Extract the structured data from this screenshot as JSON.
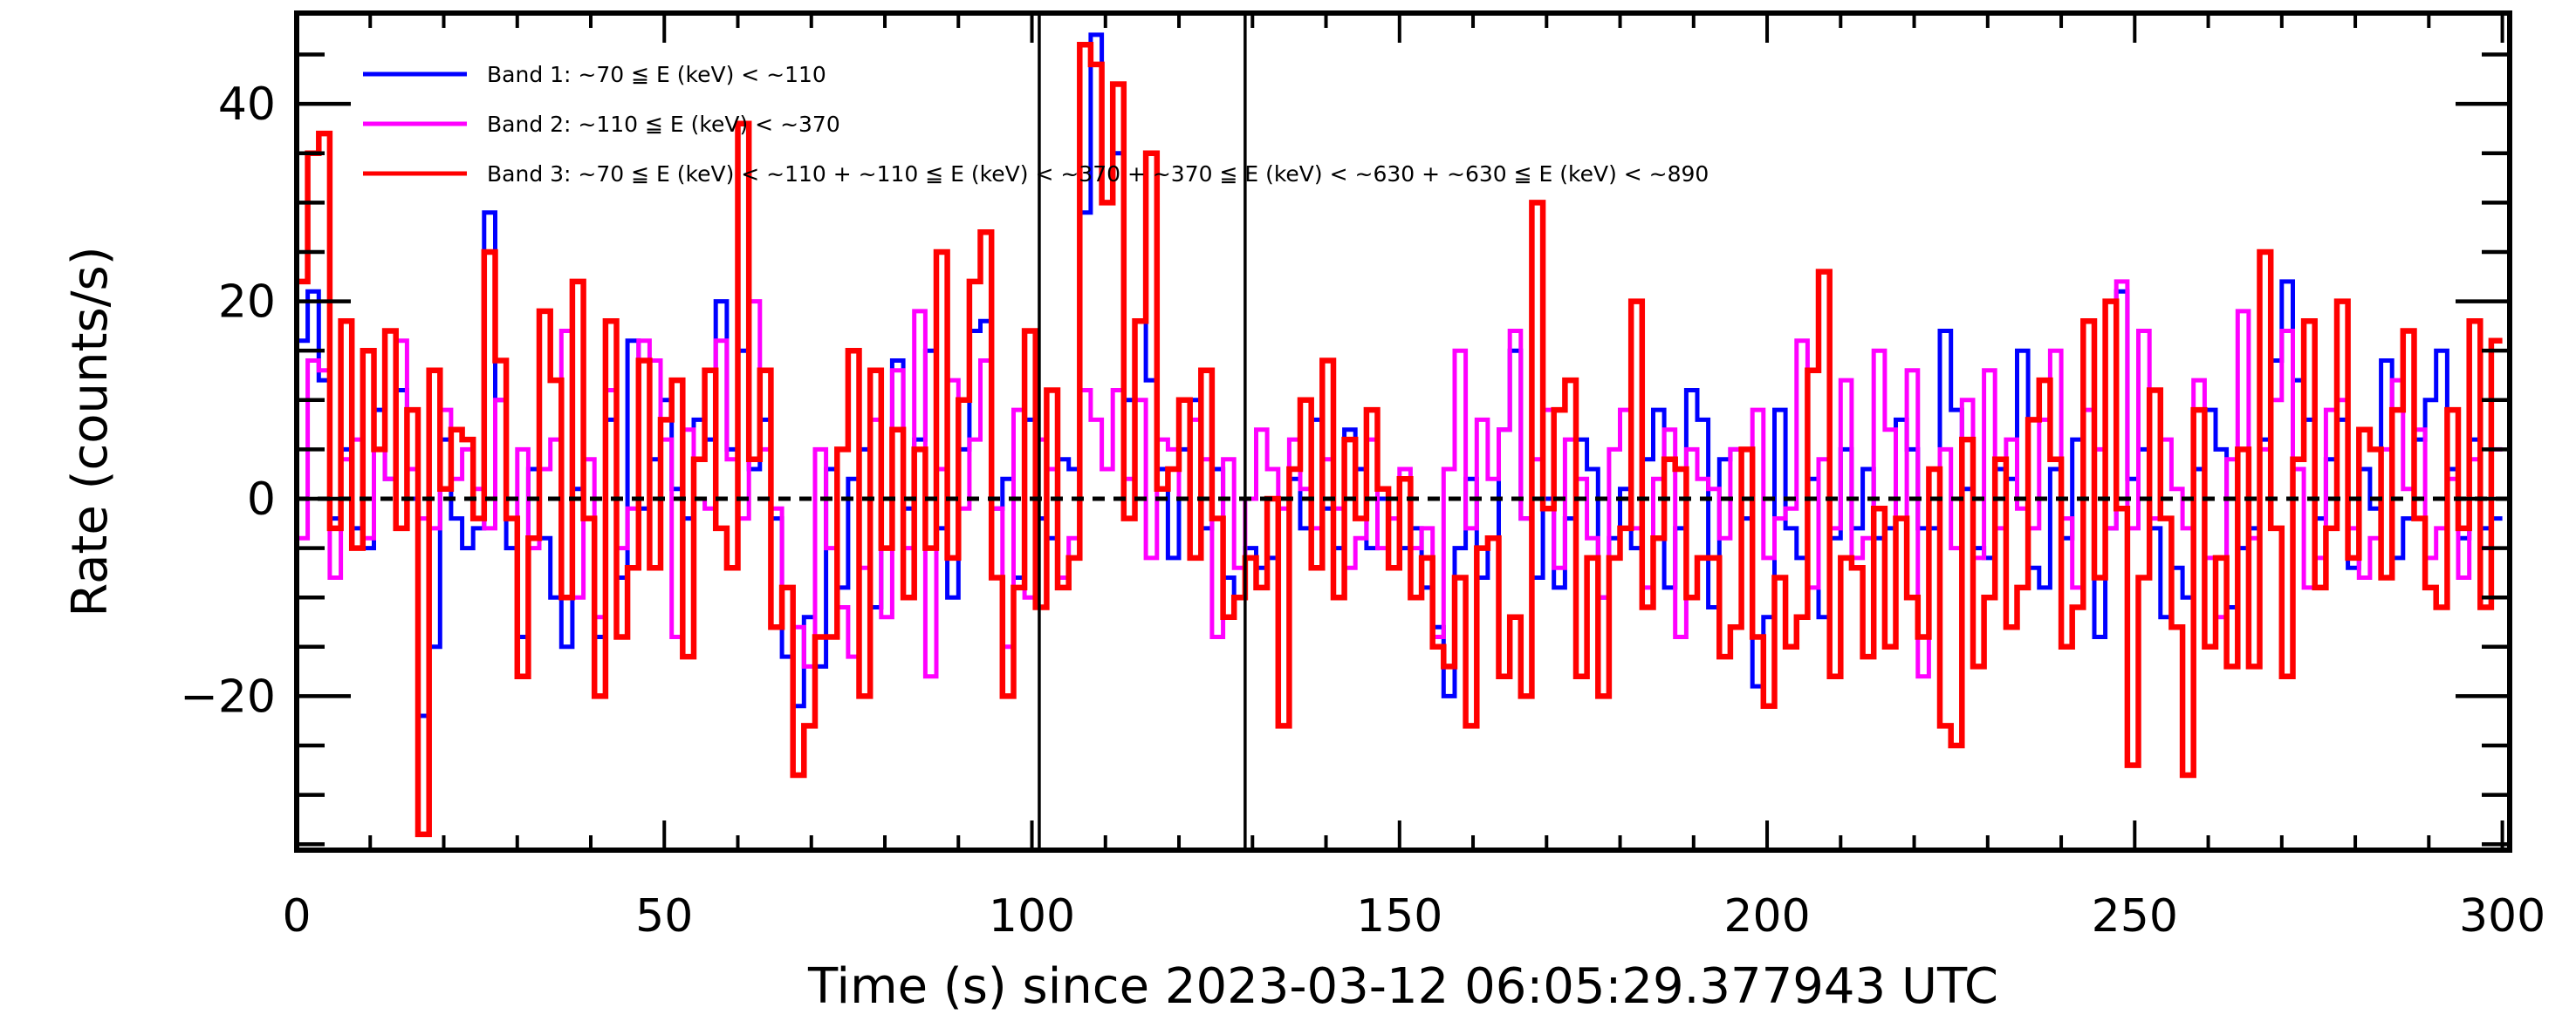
{
  "chart_data": {
    "type": "line",
    "style": "step histogram",
    "title": "",
    "xlabel": "Time (s) since 2023-03-12 06:05:29.377943 UTC",
    "ylabel": "Rate (counts/s)",
    "xlim": [
      0,
      301
    ],
    "ylim": [
      -35.6,
      49.2
    ],
    "x_ticks": [
      0,
      50,
      100,
      150,
      200,
      250,
      300
    ],
    "x_tick_labels": [
      "0",
      "50",
      "100",
      "150",
      "200",
      "250",
      "300"
    ],
    "x_minor_step": 10,
    "y_ticks": [
      -20,
      0,
      20,
      40
    ],
    "y_tick_labels": [
      "−20",
      "0",
      "20",
      "40"
    ],
    "y_minor_step": 5,
    "grid": false,
    "legend_position": "top-left",
    "reference_line_y": 0,
    "interval_markers_x": [
      101,
      129
    ],
    "bin_width": 1.5,
    "x_start": 0,
    "series": [
      {
        "name": "Band 1: ~70 ≦ E (keV) < ~110",
        "color": "#0000ff",
        "values": [
          16,
          21,
          12,
          -2,
          5,
          -3,
          -5,
          9,
          2,
          11,
          0,
          -22,
          -15,
          6,
          -2,
          -5,
          -3,
          29,
          10,
          -5,
          -14,
          3,
          -4,
          -10,
          -15,
          1,
          -2,
          -14,
          8,
          -8,
          16,
          -1,
          4,
          10,
          1,
          -2,
          8,
          6,
          20,
          5,
          15,
          3,
          8,
          -2,
          -16,
          -21,
          -12,
          -17,
          3,
          -9,
          2,
          5,
          -11,
          0,
          14,
          -1,
          6,
          15,
          -3,
          -10,
          5,
          17,
          18,
          -1,
          2,
          -8,
          8,
          -2,
          -4,
          4,
          3,
          29,
          47,
          30,
          35,
          10,
          18,
          12,
          3,
          -6,
          5,
          10,
          -3,
          3,
          -8,
          -10,
          -5,
          -7,
          -6,
          0,
          2,
          -3,
          8,
          -1,
          -5,
          7,
          3,
          -5,
          0,
          -7,
          -5,
          -3,
          -9,
          -13,
          -20,
          -5,
          2,
          -8,
          -4,
          7,
          15,
          -2,
          -8,
          0,
          -9,
          -2,
          6,
          3,
          -10,
          -4,
          1,
          -5,
          4,
          9,
          -9,
          -3,
          11,
          8,
          -11,
          4,
          5,
          -2,
          -19,
          -12,
          9,
          -3,
          -6,
          2,
          -12,
          -4,
          5,
          -3,
          3,
          -4,
          -3,
          8,
          5,
          -3,
          -3,
          17,
          9,
          1,
          -5,
          -6,
          3,
          2,
          15,
          -7,
          -9,
          3,
          -4,
          6,
          18,
          -14,
          -3,
          21,
          2,
          5,
          -3,
          -12,
          -7,
          -10,
          3,
          9,
          5,
          -11,
          -5,
          -3,
          6,
          14,
          22,
          12,
          8,
          -2,
          4,
          8,
          -7,
          3,
          -1,
          14,
          -6,
          -2,
          6,
          10,
          15,
          3,
          -4,
          6,
          -3,
          -2
        ]
      },
      {
        "name": "Band 2: ~110 ≦ E (keV) < ~370",
        "color": "#ff00ff",
        "values": [
          -4,
          14,
          13,
          -8,
          4,
          6,
          -4,
          5,
          2,
          16,
          3,
          -2,
          -3,
          9,
          2,
          5,
          1,
          -3,
          10,
          -2,
          5,
          -5,
          3,
          6,
          17,
          -10,
          4,
          -12,
          11,
          -5,
          -1,
          16,
          14,
          6,
          -14,
          7,
          0,
          -1,
          16,
          4,
          -2,
          20,
          5,
          -1,
          -9,
          -13,
          -17,
          5,
          -5,
          -11,
          -16,
          -7,
          8,
          -12,
          13,
          -5,
          19,
          -18,
          3,
          12,
          -1,
          6,
          14,
          -1,
          -15,
          9,
          -10,
          6,
          3,
          -8,
          -4,
          11,
          8,
          3,
          11,
          2,
          10,
          -6,
          6,
          5,
          0,
          8,
          4,
          -14,
          4,
          -7,
          0,
          7,
          3,
          -1,
          6,
          1,
          -3,
          4,
          -1,
          -7,
          -4,
          6,
          -5,
          -2,
          3,
          -5,
          -3,
          -14,
          3,
          15,
          -3,
          8,
          2,
          7,
          17,
          -2,
          4,
          9,
          -7,
          6,
          2,
          -4,
          -10,
          5,
          9,
          -3,
          -9,
          2,
          7,
          -14,
          5,
          2,
          1,
          -4,
          5,
          0,
          9,
          -6,
          -2,
          -1,
          16,
          -9,
          4,
          -3,
          12,
          -6,
          -4,
          15,
          7,
          -2,
          13,
          -18,
          3,
          5,
          -5,
          10,
          -6,
          13,
          -3,
          6,
          -1,
          -3,
          8,
          15,
          -2,
          -9,
          9,
          5,
          -3,
          22,
          -3,
          17,
          -2,
          6,
          1,
          -3,
          12,
          -6,
          -12,
          4,
          19,
          -4,
          5,
          10,
          17,
          3,
          -9,
          -6,
          9,
          10,
          -3,
          -8,
          -4,
          5,
          12,
          1,
          7,
          -6,
          -3,
          2,
          -8,
          4,
          -5,
          5
        ]
      },
      {
        "name": "Band 3: ~70 ≦ E (keV) < ~110 + ~110 ≦ E (keV) < ~370 + ~370 ≦ E (keV) < ~630 + ~630 ≦ E (keV) < ~890",
        "color": "#ff0000",
        "values": [
          22,
          35,
          37,
          -3,
          18,
          -5,
          15,
          5,
          17,
          -3,
          9,
          -34,
          13,
          1,
          7,
          6,
          -2,
          25,
          14,
          -2,
          -18,
          -4,
          19,
          12,
          -10,
          22,
          -2,
          -20,
          18,
          -14,
          -7,
          14,
          -7,
          8,
          12,
          -16,
          4,
          13,
          -3,
          -7,
          38,
          4,
          13,
          -13,
          -9,
          -28,
          -23,
          -14,
          -14,
          5,
          15,
          -20,
          13,
          -5,
          7,
          -10,
          5,
          -5,
          25,
          -6,
          10,
          22,
          27,
          -8,
          -20,
          -9,
          17,
          -11,
          11,
          -9,
          -6,
          46,
          44,
          30,
          42,
          -2,
          18,
          35,
          1,
          3,
          10,
          -6,
          13,
          -2,
          -12,
          -10,
          -6,
          -9,
          0,
          -23,
          3,
          10,
          -7,
          14,
          -10,
          6,
          -2,
          9,
          1,
          -7,
          2,
          -10,
          -6,
          -15,
          -17,
          -8,
          -23,
          -5,
          -4,
          -18,
          -12,
          -20,
          30,
          -1,
          9,
          12,
          -18,
          -6,
          -20,
          -6,
          -3,
          20,
          -11,
          -4,
          4,
          3,
          -10,
          -6,
          -6,
          -16,
          -13,
          5,
          -14,
          -21,
          -8,
          -15,
          -12,
          13,
          23,
          -18,
          -6,
          -7,
          -16,
          -1,
          -15,
          -2,
          -10,
          -14,
          3,
          -23,
          -25,
          6,
          -17,
          -10,
          4,
          -13,
          -9,
          8,
          12,
          4,
          -15,
          -11,
          18,
          -8,
          20,
          -1,
          -27,
          -8,
          11,
          -2,
          -13,
          -28,
          9,
          -15,
          -6,
          -17,
          5,
          -17,
          25,
          -3,
          -18,
          4,
          18,
          -9,
          -3,
          20,
          -6,
          7,
          5,
          -8,
          9,
          17,
          -2,
          -9,
          -11,
          9,
          -3,
          18,
          -11,
          16
        ]
      }
    ]
  }
}
